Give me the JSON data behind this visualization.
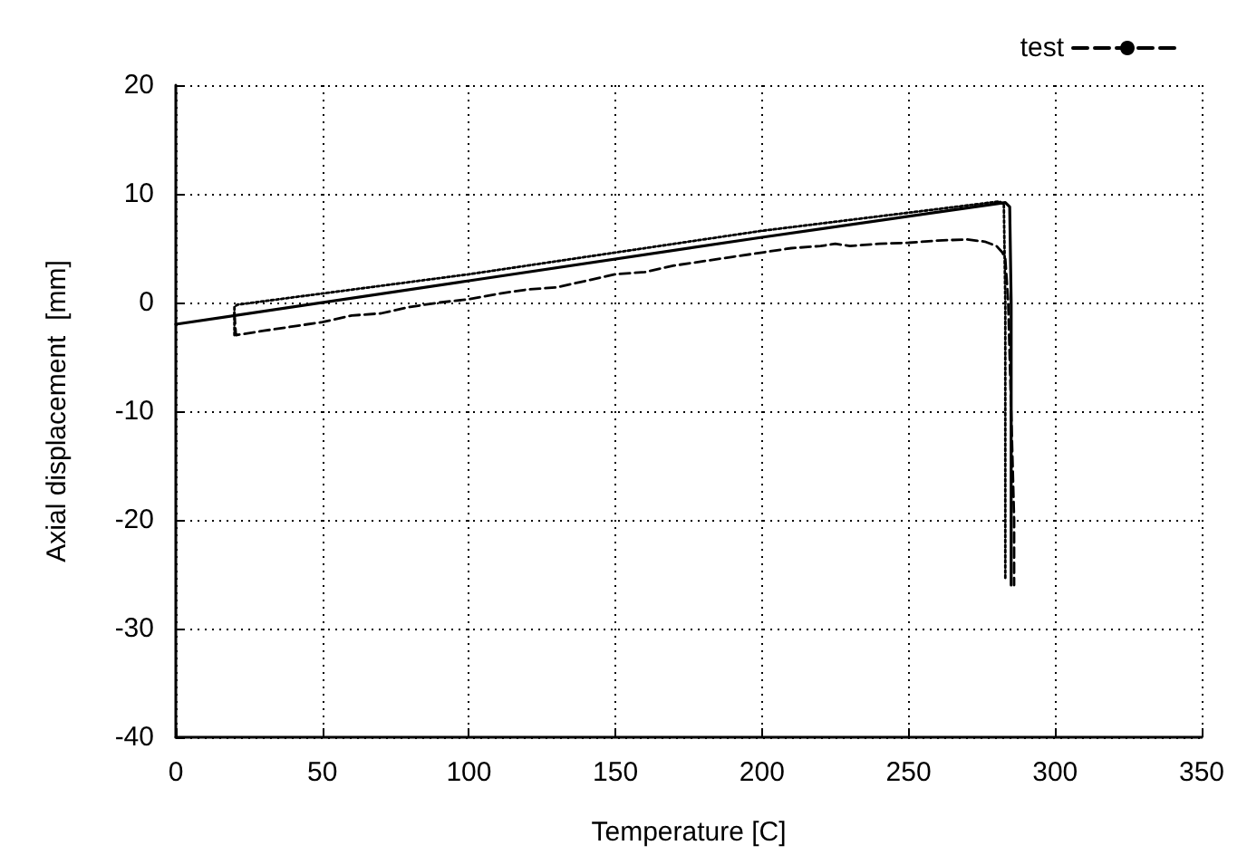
{
  "chart_data": {
    "type": "line",
    "xlabel": "Temperature [C]",
    "ylabel": "Axial displacement  [mm]",
    "xlim": [
      0,
      350
    ],
    "xticks": [
      0,
      50,
      100,
      150,
      200,
      250,
      300,
      350
    ],
    "ylim": [
      -40,
      20
    ],
    "yticks": [
      -40,
      -30,
      -20,
      -10,
      0,
      10,
      20
    ],
    "grid": true,
    "legend": "top right",
    "marker": "none",
    "series": [
      {
        "color": "#000000",
        "line_style": "solid",
        "x": [
          0,
          100,
          200,
          283,
          284.5,
          285,
          285
        ],
        "values": [
          -2,
          2,
          6,
          9.2,
          8.8,
          0,
          -26
        ]
      },
      {
        "name": "test",
        "color": "#000000",
        "line_style": "dashed",
        "x": [
          20,
          20.5,
          30,
          40,
          50,
          60,
          70,
          80,
          90,
          100,
          110,
          120,
          130,
          140,
          150,
          160,
          170,
          180,
          190,
          200,
          210,
          220,
          225,
          230,
          240,
          250,
          260,
          270,
          276,
          280,
          282,
          283,
          284,
          285,
          286,
          286
        ],
        "values": [
          -1,
          -3,
          -2.6,
          -2.2,
          -1.8,
          -1.2,
          -1,
          -0.4,
          0,
          0.3,
          0.8,
          1.2,
          1.4,
          2,
          2.6,
          2.8,
          3.4,
          3.8,
          4.2,
          4.6,
          5,
          5.2,
          5.4,
          5.2,
          5.4,
          5.5,
          5.7,
          5.8,
          5.6,
          5.2,
          4.6,
          4,
          0,
          -10,
          -20,
          -26
        ]
      },
      {
        "color": "#000000",
        "line_style": "dotted",
        "x": [
          20,
          20,
          21,
          100,
          200,
          281,
          282.5,
          283,
          283
        ],
        "values": [
          -3,
          -0.4,
          -0.2,
          2.6,
          6.6,
          9.3,
          9,
          0,
          -25.5
        ]
      }
    ]
  }
}
